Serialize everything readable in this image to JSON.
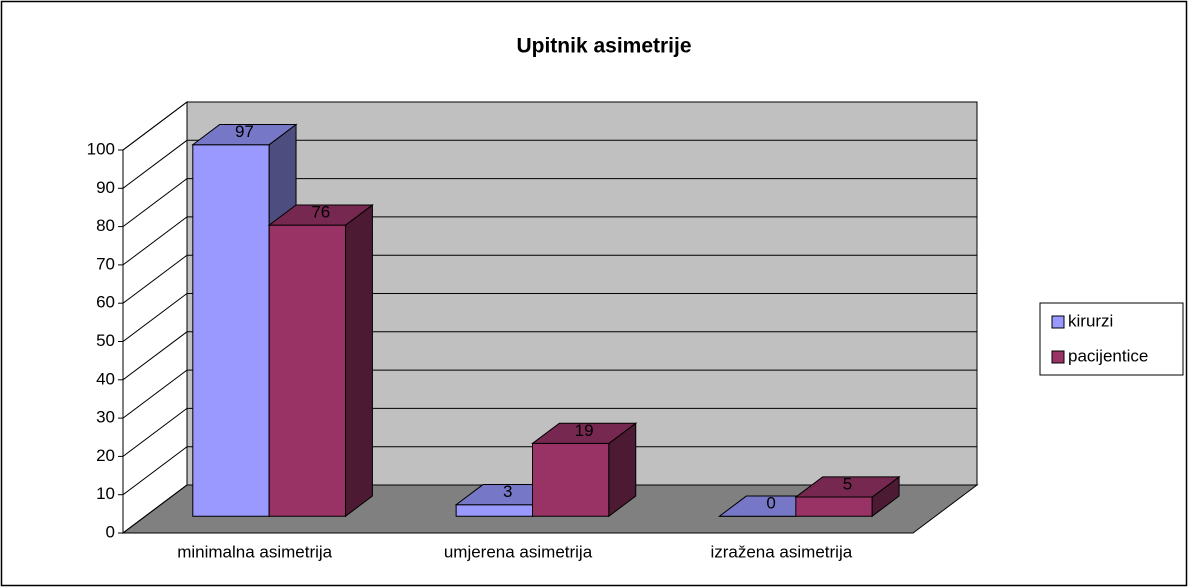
{
  "chart_data": {
    "type": "bar3d",
    "title": "Upitnik asimetrije",
    "categories": [
      "minimalna asimetrija",
      "umjerena asimetrija",
      "izražena asimetrija"
    ],
    "series": [
      {
        "name": "kirurzi",
        "color": "#9999ff",
        "values": [
          97,
          3,
          0
        ]
      },
      {
        "name": "pacijentice",
        "color": "#993366",
        "values": [
          76,
          19,
          5
        ]
      }
    ],
    "ylim": [
      0,
      100
    ],
    "yticks": [
      0,
      10,
      20,
      30,
      40,
      50,
      60,
      70,
      80,
      90,
      100
    ],
    "grid": true,
    "legend": "right"
  }
}
